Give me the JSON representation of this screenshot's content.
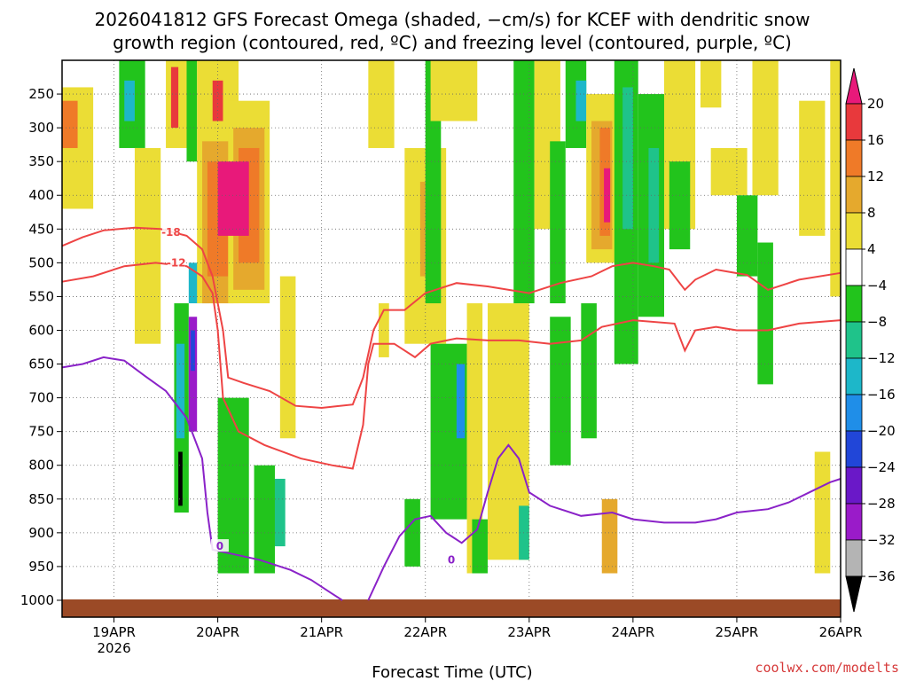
{
  "chart_data": {
    "type": "heatmap",
    "title_line1": "2026041812 GFS Forecast Omega (shaded, −cm/s) for KCEF with dendritic snow",
    "title_line2": "growth region (contoured, red, ºC) and freezing level (contoured, purple, ºC)",
    "xlabel": "Forecast Time (UTC)",
    "credit": "coolwx.com/modelts",
    "x_range": [
      -0.5,
      7.0
    ],
    "y_range": [
      1025,
      200
    ],
    "x_ticks": [
      {
        "x": 0,
        "label": "19APR",
        "sub": "2026"
      },
      {
        "x": 1,
        "label": "20APR"
      },
      {
        "x": 2,
        "label": "21APR"
      },
      {
        "x": 3,
        "label": "22APR"
      },
      {
        "x": 4,
        "label": "23APR"
      },
      {
        "x": 5,
        "label": "24APR"
      },
      {
        "x": 6,
        "label": "25APR"
      },
      {
        "x": 7,
        "label": "26APR"
      }
    ],
    "y_ticks": [
      250,
      300,
      350,
      400,
      450,
      500,
      550,
      600,
      650,
      700,
      750,
      800,
      850,
      900,
      950,
      1000
    ],
    "colorbar": {
      "levels": [
        -36,
        -32,
        -28,
        -24,
        -20,
        -16,
        -12,
        -8,
        -4,
        4,
        8,
        12,
        16,
        20
      ],
      "labels": [
        "20",
        "16",
        "12",
        "8",
        "4",
        "−4",
        "−8",
        "−12",
        "−16",
        "−20",
        "−24",
        "−28",
        "−32",
        "−36"
      ],
      "bands_top_to_bottom": [
        {
          "range": "16 to 20",
          "color": "#e8393c"
        },
        {
          "range": "12 to 16",
          "color": "#ef7a28"
        },
        {
          "range": "8 to 12",
          "color": "#e5a92d"
        },
        {
          "range": "4 to 8",
          "color": "#ebdd35"
        },
        {
          "range": "-4 to 4",
          "color": "#ffffff"
        },
        {
          "range": "-8 to -4",
          "color": "#22c41c"
        },
        {
          "range": "-12 to -8",
          "color": "#1fc38a"
        },
        {
          "range": "-16 to -12",
          "color": "#1db7c9"
        },
        {
          "range": "-20 to -16",
          "color": "#1f8ee8"
        },
        {
          "range": "-24 to -20",
          "color": "#2146d8"
        },
        {
          "range": "-28 to -24",
          "color": "#6a18c8"
        },
        {
          "range": "-32 to -28",
          "color": "#9a1bc9"
        },
        {
          "range": "-36 to -32",
          "color": "#b4b4b4"
        }
      ],
      "over_color": "#e8197a",
      "under_color": "#000000"
    },
    "omega_shading": [
      {
        "x0": -0.5,
        "x1": -0.2,
        "p0": 240,
        "p1": 420,
        "color": "#ebdd35"
      },
      {
        "x0": -0.5,
        "x1": -0.35,
        "p0": 260,
        "p1": 330,
        "color": "#ef7a28"
      },
      {
        "x0": 0.05,
        "x1": 0.3,
        "p0": 200,
        "p1": 330,
        "color": "#22c41c"
      },
      {
        "x0": 0.1,
        "x1": 0.2,
        "p0": 230,
        "p1": 290,
        "color": "#1db7c9"
      },
      {
        "x0": 0.2,
        "x1": 0.45,
        "p0": 330,
        "p1": 620,
        "color": "#ebdd35"
      },
      {
        "x0": 0.5,
        "x1": 0.7,
        "p0": 200,
        "p1": 330,
        "color": "#ebdd35"
      },
      {
        "x0": 0.55,
        "x1": 0.62,
        "p0": 210,
        "p1": 300,
        "color": "#e8393c"
      },
      {
        "x0": 0.58,
        "x1": 0.72,
        "p0": 560,
        "p1": 870,
        "color": "#22c41c"
      },
      {
        "x0": 0.6,
        "x1": 0.68,
        "p0": 620,
        "p1": 760,
        "color": "#1db7c9"
      },
      {
        "x0": 0.62,
        "x1": 0.66,
        "p0": 780,
        "p1": 860,
        "color": "#000000"
      },
      {
        "x0": 0.7,
        "x1": 0.8,
        "p0": 200,
        "p1": 350,
        "color": "#22c41c"
      },
      {
        "x0": 0.72,
        "x1": 0.92,
        "p0": 500,
        "p1": 560,
        "color": "#1db7c9"
      },
      {
        "x0": 0.72,
        "x1": 0.8,
        "p0": 580,
        "p1": 750,
        "color": "#9a1bc9"
      },
      {
        "x0": 0.74,
        "x1": 0.78,
        "p0": 600,
        "p1": 660,
        "color": "#2146d8"
      },
      {
        "x0": 0.8,
        "x1": 1.2,
        "p0": 200,
        "p1": 560,
        "color": "#ebdd35"
      },
      {
        "x0": 0.85,
        "x1": 1.15,
        "p0": 320,
        "p1": 560,
        "color": "#e5a92d"
      },
      {
        "x0": 0.9,
        "x1": 1.1,
        "p0": 350,
        "p1": 520,
        "color": "#ef7a28"
      },
      {
        "x0": 0.95,
        "x1": 1.05,
        "p0": 230,
        "p1": 290,
        "color": "#e8393c"
      },
      {
        "x0": 1.1,
        "x1": 1.5,
        "p0": 260,
        "p1": 560,
        "color": "#ebdd35"
      },
      {
        "x0": 1.15,
        "x1": 1.45,
        "p0": 300,
        "p1": 540,
        "color": "#e5a92d"
      },
      {
        "x0": 1.2,
        "x1": 1.4,
        "p0": 330,
        "p1": 500,
        "color": "#ef7a28"
      },
      {
        "x0": 1.0,
        "x1": 1.3,
        "p0": 350,
        "p1": 460,
        "color": "#e8197a"
      },
      {
        "x0": 1.0,
        "x1": 1.3,
        "p0": 700,
        "p1": 960,
        "color": "#22c41c"
      },
      {
        "x0": 1.35,
        "x1": 1.55,
        "p0": 800,
        "p1": 960,
        "color": "#22c41c"
      },
      {
        "x0": 1.55,
        "x1": 1.65,
        "p0": 820,
        "p1": 920,
        "color": "#1fc38a"
      },
      {
        "x0": 1.6,
        "x1": 1.75,
        "p0": 520,
        "p1": 760,
        "color": "#ebdd35"
      },
      {
        "x0": 2.45,
        "x1": 2.7,
        "p0": 200,
        "p1": 330,
        "color": "#ebdd35"
      },
      {
        "x0": 2.55,
        "x1": 2.65,
        "p0": 560,
        "p1": 640,
        "color": "#ebdd35"
      },
      {
        "x0": 2.8,
        "x1": 2.95,
        "p0": 850,
        "p1": 950,
        "color": "#22c41c"
      },
      {
        "x0": 2.8,
        "x1": 3.2,
        "p0": 330,
        "p1": 620,
        "color": "#ebdd35"
      },
      {
        "x0": 2.95,
        "x1": 3.1,
        "p0": 380,
        "p1": 520,
        "color": "#e5a92d"
      },
      {
        "x0": 3.0,
        "x1": 3.15,
        "p0": 200,
        "p1": 560,
        "color": "#22c41c"
      },
      {
        "x0": 3.05,
        "x1": 3.5,
        "p0": 200,
        "p1": 290,
        "color": "#ebdd35"
      },
      {
        "x0": 3.05,
        "x1": 3.4,
        "p0": 620,
        "p1": 880,
        "color": "#22c41c"
      },
      {
        "x0": 3.3,
        "x1": 3.38,
        "p0": 650,
        "p1": 760,
        "color": "#1f8ee8"
      },
      {
        "x0": 3.4,
        "x1": 3.55,
        "p0": 560,
        "p1": 960,
        "color": "#ebdd35"
      },
      {
        "x0": 3.45,
        "x1": 3.6,
        "p0": 880,
        "p1": 960,
        "color": "#22c41c"
      },
      {
        "x0": 3.85,
        "x1": 4.05,
        "p0": 200,
        "p1": 560,
        "color": "#22c41c"
      },
      {
        "x0": 3.6,
        "x1": 4.0,
        "p0": 560,
        "p1": 940,
        "color": "#ebdd35"
      },
      {
        "x0": 3.9,
        "x1": 4.0,
        "p0": 860,
        "p1": 940,
        "color": "#1fc38a"
      },
      {
        "x0": 4.05,
        "x1": 4.3,
        "p0": 200,
        "p1": 450,
        "color": "#ebdd35"
      },
      {
        "x0": 4.2,
        "x1": 4.35,
        "p0": 320,
        "p1": 560,
        "color": "#22c41c"
      },
      {
        "x0": 4.2,
        "x1": 4.4,
        "p0": 580,
        "p1": 800,
        "color": "#22c41c"
      },
      {
        "x0": 4.35,
        "x1": 4.55,
        "p0": 200,
        "p1": 330,
        "color": "#22c41c"
      },
      {
        "x0": 4.45,
        "x1": 4.55,
        "p0": 230,
        "p1": 290,
        "color": "#1db7c9"
      },
      {
        "x0": 4.5,
        "x1": 4.65,
        "p0": 560,
        "p1": 760,
        "color": "#22c41c"
      },
      {
        "x0": 4.55,
        "x1": 4.85,
        "p0": 250,
        "p1": 500,
        "color": "#ebdd35"
      },
      {
        "x0": 4.6,
        "x1": 4.8,
        "p0": 290,
        "p1": 480,
        "color": "#e5a92d"
      },
      {
        "x0": 4.68,
        "x1": 4.78,
        "p0": 300,
        "p1": 460,
        "color": "#ef7a28"
      },
      {
        "x0": 4.72,
        "x1": 4.78,
        "p0": 360,
        "p1": 440,
        "color": "#e8197a"
      },
      {
        "x0": 4.7,
        "x1": 4.85,
        "p0": 850,
        "p1": 960,
        "color": "#e5a92d"
      },
      {
        "x0": 4.82,
        "x1": 5.05,
        "p0": 200,
        "p1": 650,
        "color": "#22c41c"
      },
      {
        "x0": 4.9,
        "x1": 5.0,
        "p0": 240,
        "p1": 450,
        "color": "#1fc38a"
      },
      {
        "x0": 5.05,
        "x1": 5.3,
        "p0": 250,
        "p1": 580,
        "color": "#22c41c"
      },
      {
        "x0": 5.15,
        "x1": 5.25,
        "p0": 330,
        "p1": 500,
        "color": "#1fc38a"
      },
      {
        "x0": 5.3,
        "x1": 5.6,
        "p0": 200,
        "p1": 450,
        "color": "#ebdd35"
      },
      {
        "x0": 5.35,
        "x1": 5.55,
        "p0": 350,
        "p1": 480,
        "color": "#22c41c"
      },
      {
        "x0": 5.65,
        "x1": 5.85,
        "p0": 200,
        "p1": 270,
        "color": "#ebdd35"
      },
      {
        "x0": 5.75,
        "x1": 6.1,
        "p0": 330,
        "p1": 400,
        "color": "#ebdd35"
      },
      {
        "x0": 6.0,
        "x1": 6.2,
        "p0": 400,
        "p1": 520,
        "color": "#22c41c"
      },
      {
        "x0": 6.15,
        "x1": 6.4,
        "p0": 200,
        "p1": 400,
        "color": "#ebdd35"
      },
      {
        "x0": 6.2,
        "x1": 6.35,
        "p0": 470,
        "p1": 680,
        "color": "#22c41c"
      },
      {
        "x0": 6.6,
        "x1": 6.85,
        "p0": 260,
        "p1": 460,
        "color": "#ebdd35"
      },
      {
        "x0": 6.75,
        "x1": 6.9,
        "p0": 780,
        "p1": 960,
        "color": "#ebdd35"
      },
      {
        "x0": 6.9,
        "x1": 7.0,
        "p0": 200,
        "p1": 550,
        "color": "#ebdd35"
      }
    ],
    "contours": [
      {
        "label": "-18",
        "color": "#ee4444",
        "label_at": [
          0.55,
          455
        ],
        "points": [
          [
            -0.5,
            475
          ],
          [
            -0.3,
            462
          ],
          [
            -0.1,
            452
          ],
          [
            0.2,
            448
          ],
          [
            0.45,
            450
          ],
          [
            0.7,
            460
          ],
          [
            0.85,
            480
          ],
          [
            0.95,
            520
          ],
          [
            1.05,
            600
          ],
          [
            1.1,
            670
          ],
          [
            1.25,
            678
          ],
          [
            1.5,
            690
          ],
          [
            1.75,
            712
          ],
          [
            2.0,
            715
          ],
          [
            2.3,
            710
          ],
          [
            2.4,
            670
          ],
          [
            2.5,
            600
          ],
          [
            2.6,
            570
          ],
          [
            2.8,
            570
          ],
          [
            3.0,
            545
          ],
          [
            3.3,
            530
          ],
          [
            3.6,
            535
          ],
          [
            4.0,
            545
          ],
          [
            4.3,
            530
          ],
          [
            4.6,
            520
          ],
          [
            4.8,
            505
          ],
          [
            5.0,
            500
          ],
          [
            5.2,
            505
          ],
          [
            5.35,
            510
          ],
          [
            5.5,
            540
          ],
          [
            5.6,
            525
          ],
          [
            5.8,
            510
          ],
          [
            6.1,
            518
          ],
          [
            6.3,
            540
          ],
          [
            6.6,
            525
          ],
          [
            7.0,
            515
          ]
        ]
      },
      {
        "label": "-12",
        "color": "#ee4444",
        "label_at": [
          0.6,
          500
        ],
        "points": [
          [
            -0.5,
            528
          ],
          [
            -0.2,
            520
          ],
          [
            0.1,
            505
          ],
          [
            0.4,
            500
          ],
          [
            0.7,
            505
          ],
          [
            0.85,
            520
          ],
          [
            0.95,
            545
          ],
          [
            1.0,
            600
          ],
          [
            1.05,
            700
          ],
          [
            1.2,
            750
          ],
          [
            1.45,
            770
          ],
          [
            1.8,
            790
          ],
          [
            2.1,
            800
          ],
          [
            2.3,
            805
          ],
          [
            2.4,
            740
          ],
          [
            2.45,
            650
          ],
          [
            2.5,
            620
          ],
          [
            2.7,
            620
          ],
          [
            2.9,
            640
          ],
          [
            3.05,
            620
          ],
          [
            3.3,
            612
          ],
          [
            3.6,
            615
          ],
          [
            3.9,
            615
          ],
          [
            4.2,
            620
          ],
          [
            4.5,
            615
          ],
          [
            4.7,
            595
          ],
          [
            5.0,
            585
          ],
          [
            5.4,
            590
          ],
          [
            5.5,
            630
          ],
          [
            5.6,
            600
          ],
          [
            5.8,
            595
          ],
          [
            6.0,
            600
          ],
          [
            6.3,
            600
          ],
          [
            6.6,
            590
          ],
          [
            7.0,
            585
          ]
        ]
      },
      {
        "label": "0",
        "color": "#8a22c8",
        "label_at": [
          1.02,
          920
        ],
        "points": [
          [
            -0.5,
            655
          ],
          [
            -0.3,
            650
          ],
          [
            -0.1,
            640
          ],
          [
            0.1,
            645
          ],
          [
            0.3,
            668
          ],
          [
            0.5,
            690
          ],
          [
            0.7,
            730
          ],
          [
            0.85,
            790
          ],
          [
            0.9,
            870
          ],
          [
            0.95,
            925
          ],
          [
            1.1,
            930
          ],
          [
            1.4,
            940
          ],
          [
            1.7,
            955
          ],
          [
            1.9,
            970
          ],
          [
            2.1,
            990
          ],
          [
            2.2,
            1000
          ]
        ]
      },
      {
        "label": "0",
        "color": "#8a22c8",
        "label_at": [
          3.25,
          940
        ],
        "points": [
          [
            2.45,
            1000
          ],
          [
            2.6,
            950
          ],
          [
            2.75,
            905
          ],
          [
            2.9,
            880
          ],
          [
            3.05,
            875
          ],
          [
            3.2,
            900
          ],
          [
            3.35,
            915
          ],
          [
            3.5,
            895
          ],
          [
            3.6,
            840
          ],
          [
            3.7,
            790
          ],
          [
            3.8,
            770
          ],
          [
            3.9,
            790
          ],
          [
            4.0,
            840
          ],
          [
            4.2,
            860
          ],
          [
            4.5,
            875
          ],
          [
            4.8,
            870
          ],
          [
            5.0,
            880
          ],
          [
            5.3,
            885
          ],
          [
            5.6,
            885
          ],
          [
            5.8,
            880
          ],
          [
            6.0,
            870
          ],
          [
            6.3,
            865
          ],
          [
            6.5,
            855
          ],
          [
            6.7,
            840
          ],
          [
            6.9,
            825
          ],
          [
            7.0,
            820
          ]
        ]
      }
    ]
  }
}
